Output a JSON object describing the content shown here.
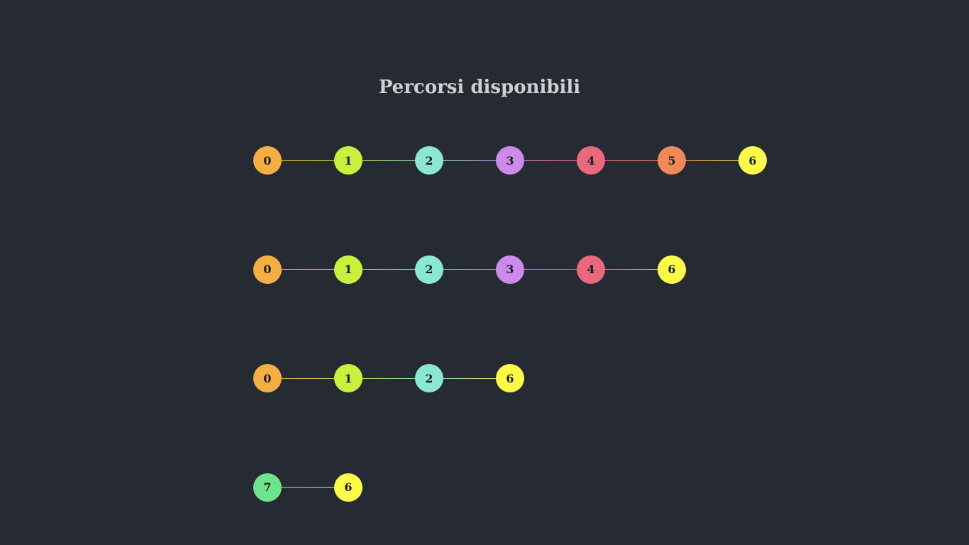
{
  "title": "Percorsi disponibili",
  "node_colors": {
    "0": "#f5ae42",
    "1": "#c8f03c",
    "2": "#8ae8d0",
    "3": "#cc8aec",
    "4": "#e8687e",
    "5": "#f0895a",
    "6": "#fcfc48",
    "7": "#6ee48a"
  },
  "paths": [
    [
      "0",
      "1",
      "2",
      "3",
      "4",
      "5",
      "6"
    ],
    [
      "0",
      "1",
      "2",
      "3",
      "4",
      "6"
    ],
    [
      "0",
      "1",
      "2",
      "6"
    ],
    [
      "7",
      "6"
    ]
  ]
}
